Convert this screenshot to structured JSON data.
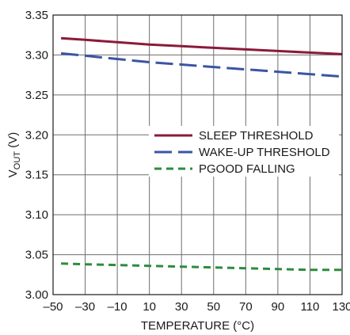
{
  "chart_data": {
    "type": "line",
    "title": "",
    "xlabel": "TEMPERATURE (°C)",
    "ylabel_main": "V",
    "ylabel_sub": "OUT",
    "ylabel_unit": " (V)",
    "xlim": [
      -50,
      130
    ],
    "ylim": [
      3.0,
      3.35
    ],
    "x_ticks": [
      -50,
      -30,
      -10,
      10,
      30,
      50,
      70,
      90,
      110,
      130
    ],
    "x_tick_labels": [
      "–50",
      "–30",
      "–10",
      "10",
      "30",
      "50",
      "70",
      "90",
      "110",
      "130"
    ],
    "y_ticks": [
      3.0,
      3.05,
      3.1,
      3.15,
      3.2,
      3.25,
      3.3,
      3.35
    ],
    "y_tick_labels": [
      "3.00",
      "3.05",
      "3.10",
      "3.15",
      "3.20",
      "3.25",
      "3.30",
      "3.35"
    ],
    "grid": true,
    "legend_position": "center-right",
    "series": [
      {
        "name": "SLEEP THRESHOLD",
        "color": "#8b1a3a",
        "dash": "solid",
        "x": [
          -45,
          -30,
          -10,
          10,
          30,
          50,
          70,
          90,
          110,
          130
        ],
        "y": [
          3.321,
          3.319,
          3.316,
          3.313,
          3.311,
          3.309,
          3.307,
          3.305,
          3.303,
          3.301
        ]
      },
      {
        "name": "WAKE-UP THRESHOLD",
        "color": "#3a55a4",
        "dash": "long-dash",
        "x": [
          -45,
          -30,
          -10,
          10,
          30,
          50,
          70,
          90,
          110,
          130
        ],
        "y": [
          3.302,
          3.299,
          3.295,
          3.291,
          3.288,
          3.285,
          3.282,
          3.279,
          3.276,
          3.273
        ]
      },
      {
        "name": "PGOOD FALLING",
        "color": "#2e8b3e",
        "dash": "short-dash",
        "x": [
          -45,
          -30,
          -10,
          10,
          30,
          50,
          70,
          90,
          110,
          130
        ],
        "y": [
          3.039,
          3.038,
          3.037,
          3.036,
          3.035,
          3.034,
          3.033,
          3.032,
          3.031,
          3.031
        ]
      }
    ]
  }
}
